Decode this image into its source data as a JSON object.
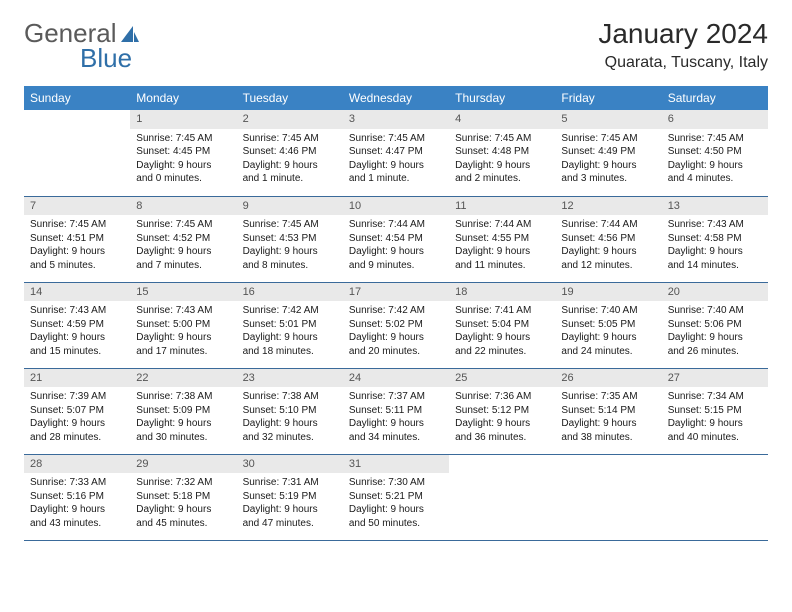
{
  "logo": {
    "general": "General",
    "blue": "Blue"
  },
  "title": "January 2024",
  "location": "Quarata, Tuscany, Italy",
  "colors": {
    "header_bg": "#3a82c4",
    "header_text": "#ffffff",
    "daynum_bg": "#e9e9e9",
    "row_border": "#3a6a9a",
    "logo_gray": "#5a5a5a",
    "logo_blue": "#2f6fa8"
  },
  "daysOfWeek": [
    "Sunday",
    "Monday",
    "Tuesday",
    "Wednesday",
    "Thursday",
    "Friday",
    "Saturday"
  ],
  "weeks": [
    [
      null,
      {
        "n": "1",
        "sunrise": "7:45 AM",
        "sunset": "4:45 PM",
        "daylight": "9 hours and 0 minutes."
      },
      {
        "n": "2",
        "sunrise": "7:45 AM",
        "sunset": "4:46 PM",
        "daylight": "9 hours and 1 minute."
      },
      {
        "n": "3",
        "sunrise": "7:45 AM",
        "sunset": "4:47 PM",
        "daylight": "9 hours and 1 minute."
      },
      {
        "n": "4",
        "sunrise": "7:45 AM",
        "sunset": "4:48 PM",
        "daylight": "9 hours and 2 minutes."
      },
      {
        "n": "5",
        "sunrise": "7:45 AM",
        "sunset": "4:49 PM",
        "daylight": "9 hours and 3 minutes."
      },
      {
        "n": "6",
        "sunrise": "7:45 AM",
        "sunset": "4:50 PM",
        "daylight": "9 hours and 4 minutes."
      }
    ],
    [
      {
        "n": "7",
        "sunrise": "7:45 AM",
        "sunset": "4:51 PM",
        "daylight": "9 hours and 5 minutes."
      },
      {
        "n": "8",
        "sunrise": "7:45 AM",
        "sunset": "4:52 PM",
        "daylight": "9 hours and 7 minutes."
      },
      {
        "n": "9",
        "sunrise": "7:45 AM",
        "sunset": "4:53 PM",
        "daylight": "9 hours and 8 minutes."
      },
      {
        "n": "10",
        "sunrise": "7:44 AM",
        "sunset": "4:54 PM",
        "daylight": "9 hours and 9 minutes."
      },
      {
        "n": "11",
        "sunrise": "7:44 AM",
        "sunset": "4:55 PM",
        "daylight": "9 hours and 11 minutes."
      },
      {
        "n": "12",
        "sunrise": "7:44 AM",
        "sunset": "4:56 PM",
        "daylight": "9 hours and 12 minutes."
      },
      {
        "n": "13",
        "sunrise": "7:43 AM",
        "sunset": "4:58 PM",
        "daylight": "9 hours and 14 minutes."
      }
    ],
    [
      {
        "n": "14",
        "sunrise": "7:43 AM",
        "sunset": "4:59 PM",
        "daylight": "9 hours and 15 minutes."
      },
      {
        "n": "15",
        "sunrise": "7:43 AM",
        "sunset": "5:00 PM",
        "daylight": "9 hours and 17 minutes."
      },
      {
        "n": "16",
        "sunrise": "7:42 AM",
        "sunset": "5:01 PM",
        "daylight": "9 hours and 18 minutes."
      },
      {
        "n": "17",
        "sunrise": "7:42 AM",
        "sunset": "5:02 PM",
        "daylight": "9 hours and 20 minutes."
      },
      {
        "n": "18",
        "sunrise": "7:41 AM",
        "sunset": "5:04 PM",
        "daylight": "9 hours and 22 minutes."
      },
      {
        "n": "19",
        "sunrise": "7:40 AM",
        "sunset": "5:05 PM",
        "daylight": "9 hours and 24 minutes."
      },
      {
        "n": "20",
        "sunrise": "7:40 AM",
        "sunset": "5:06 PM",
        "daylight": "9 hours and 26 minutes."
      }
    ],
    [
      {
        "n": "21",
        "sunrise": "7:39 AM",
        "sunset": "5:07 PM",
        "daylight": "9 hours and 28 minutes."
      },
      {
        "n": "22",
        "sunrise": "7:38 AM",
        "sunset": "5:09 PM",
        "daylight": "9 hours and 30 minutes."
      },
      {
        "n": "23",
        "sunrise": "7:38 AM",
        "sunset": "5:10 PM",
        "daylight": "9 hours and 32 minutes."
      },
      {
        "n": "24",
        "sunrise": "7:37 AM",
        "sunset": "5:11 PM",
        "daylight": "9 hours and 34 minutes."
      },
      {
        "n": "25",
        "sunrise": "7:36 AM",
        "sunset": "5:12 PM",
        "daylight": "9 hours and 36 minutes."
      },
      {
        "n": "26",
        "sunrise": "7:35 AM",
        "sunset": "5:14 PM",
        "daylight": "9 hours and 38 minutes."
      },
      {
        "n": "27",
        "sunrise": "7:34 AM",
        "sunset": "5:15 PM",
        "daylight": "9 hours and 40 minutes."
      }
    ],
    [
      {
        "n": "28",
        "sunrise": "7:33 AM",
        "sunset": "5:16 PM",
        "daylight": "9 hours and 43 minutes."
      },
      {
        "n": "29",
        "sunrise": "7:32 AM",
        "sunset": "5:18 PM",
        "daylight": "9 hours and 45 minutes."
      },
      {
        "n": "30",
        "sunrise": "7:31 AM",
        "sunset": "5:19 PM",
        "daylight": "9 hours and 47 minutes."
      },
      {
        "n": "31",
        "sunrise": "7:30 AM",
        "sunset": "5:21 PM",
        "daylight": "9 hours and 50 minutes."
      },
      null,
      null,
      null
    ]
  ],
  "labels": {
    "sunrise": "Sunrise:",
    "sunset": "Sunset:",
    "daylight": "Daylight:"
  }
}
